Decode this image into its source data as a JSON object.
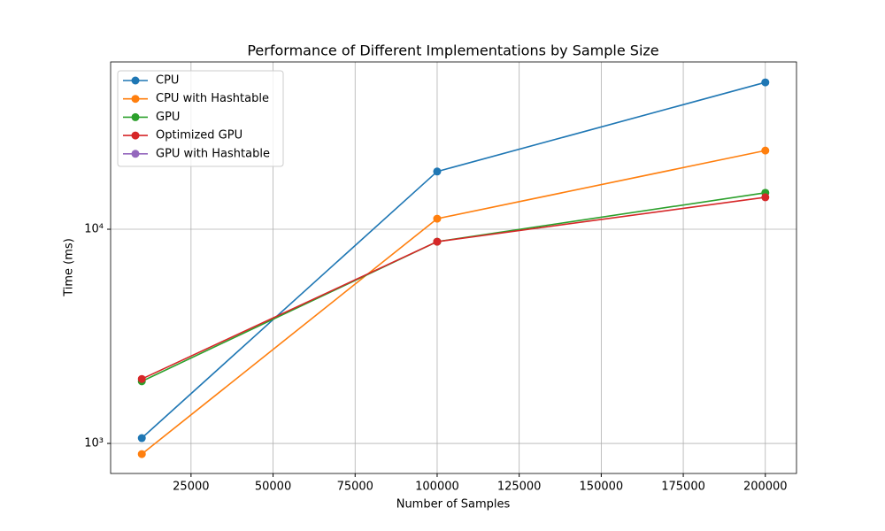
{
  "chart_data": {
    "type": "line",
    "title": "Performance of Different Implementations by Sample Size",
    "x_label": "Number of Samples",
    "y_label": "Time (ms)",
    "x": [
      10000,
      100000,
      200000
    ],
    "series": [
      {
        "name": "CPU",
        "color": "#1f77b4",
        "values": [
          1059,
          18600,
          48500
        ]
      },
      {
        "name": "CPU with Hashtable",
        "color": "#ff7f0e",
        "values": [
          892,
          11200,
          23300
        ]
      },
      {
        "name": "GPU",
        "color": "#2ca02c",
        "values": [
          1950,
          8750,
          14800
        ]
      },
      {
        "name": "Optimized GPU",
        "color": "#d62728",
        "values": [
          2000,
          8750,
          14100
        ]
      },
      {
        "name": "GPU with Hashtable",
        "color": "#9467bd",
        "values": [
          null,
          null,
          null
        ]
      }
    ],
    "xlim": [
      500,
      209500
    ],
    "xticks": [
      25000,
      50000,
      75000,
      100000,
      125000,
      150000,
      175000,
      200000
    ],
    "ylim": [
      724,
      60400
    ],
    "y_scale": "log",
    "yticks": [
      {
        "value": 1000,
        "label": "10³"
      },
      {
        "value": 10000,
        "label": "10⁴"
      }
    ],
    "grid": true,
    "legend": "upper-left"
  }
}
